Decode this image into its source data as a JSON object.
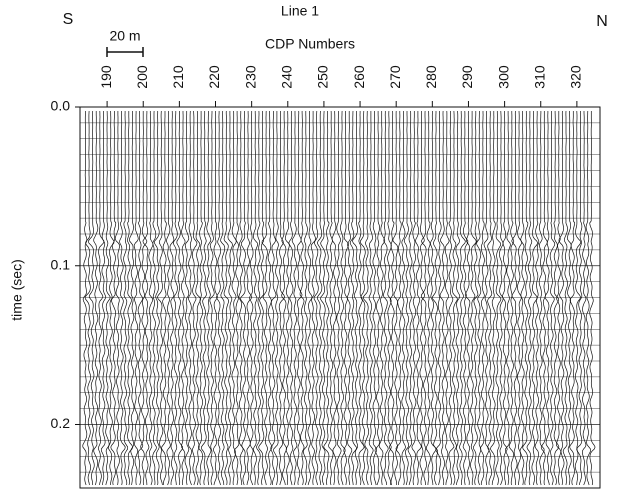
{
  "chart_data": {
    "type": "seismic",
    "title": "Line 1",
    "left_label": "S",
    "right_label": "N",
    "scale_bar_label": "20 m",
    "xlabel": "CDP Numbers",
    "ylabel": "time (sec)",
    "xlim": [
      182.5,
      326.4
    ],
    "xticks": [
      190,
      200,
      210,
      220,
      230,
      240,
      250,
      260,
      270,
      280,
      290,
      300,
      310,
      320
    ],
    "ylim": [
      0,
      0.24
    ],
    "yticks": [
      {
        "value": 0,
        "label": "0.0"
      },
      {
        "value": 0.1,
        "label": "0.1"
      },
      {
        "value": 0.2,
        "label": "0.2"
      }
    ],
    "yminor_ticks": [
      0.01,
      0.02,
      0.03,
      0.04,
      0.05,
      0.06,
      0.07,
      0.08,
      0.09,
      0.11,
      0.12,
      0.13,
      0.14,
      0.15,
      0.16,
      0.17,
      0.18,
      0.19,
      0.21,
      0.22,
      0.23
    ],
    "grid": true
  }
}
